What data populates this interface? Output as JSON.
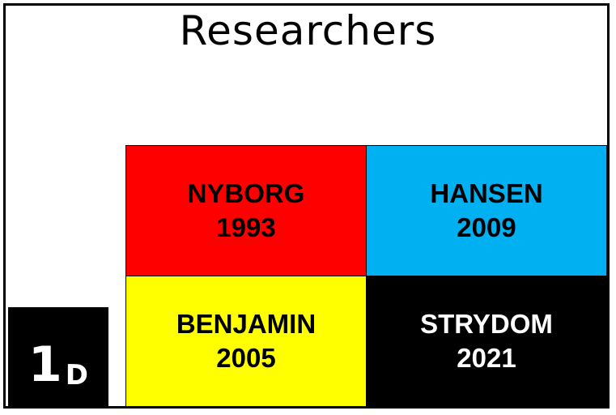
{
  "title": "Researchers",
  "cells": [
    {
      "name": "NYBORG",
      "year": "1993",
      "bg": "#ff0000",
      "fg": "#000000"
    },
    {
      "name": "HANSEN",
      "year": "2009",
      "bg": "#00b0f0",
      "fg": "#000000"
    },
    {
      "name": "BENJAMIN",
      "year": "2005",
      "bg": "#ffff00",
      "fg": "#000000"
    },
    {
      "name": "STRYDOM",
      "year": "2021",
      "bg": "#000000",
      "fg": "#ffffff"
    }
  ],
  "label": {
    "number": "1",
    "letter": "D"
  }
}
